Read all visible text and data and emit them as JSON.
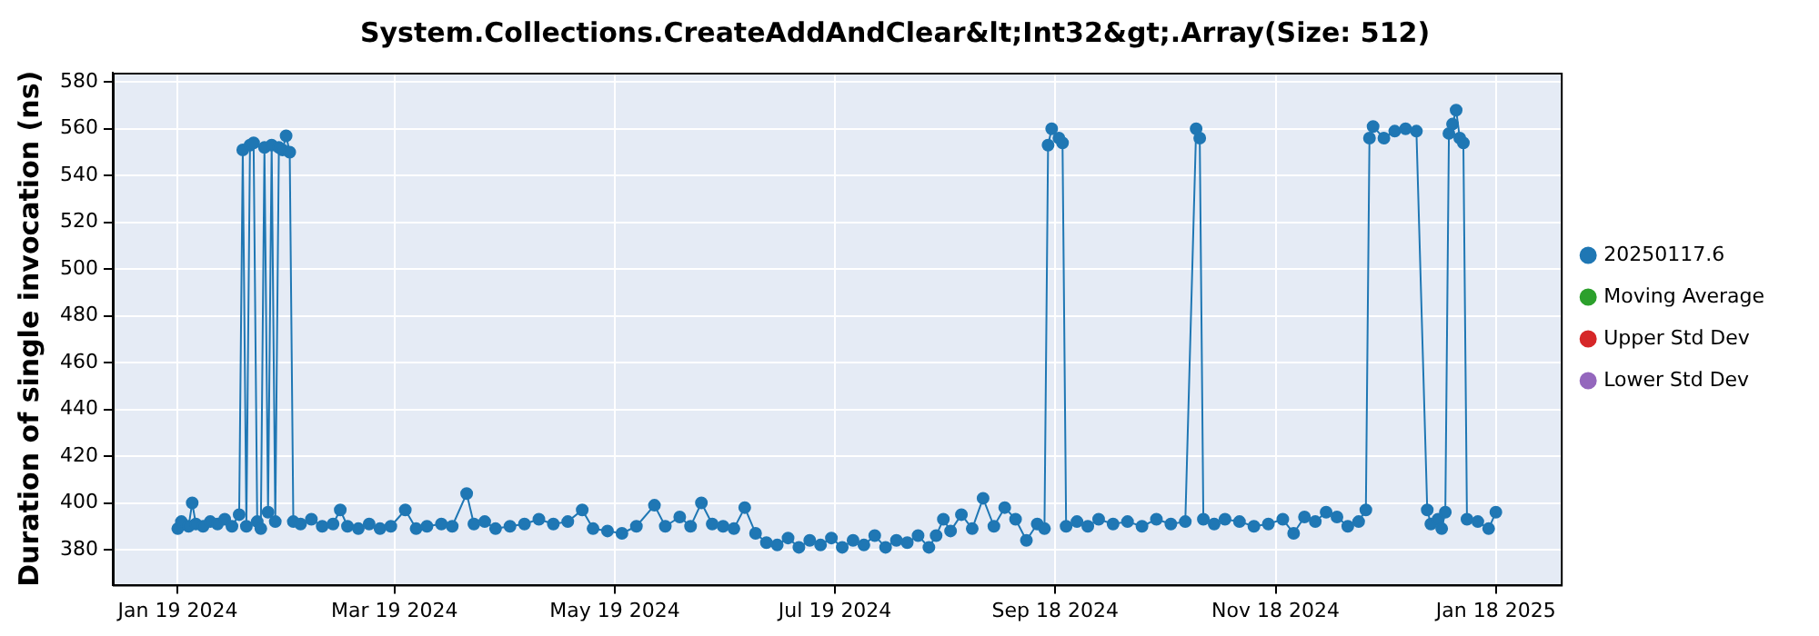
{
  "chart_data": {
    "type": "line",
    "title": "System.Collections.CreateAddAndClear&lt;Int32&gt;.Array(Size: 512)",
    "ylabel": "Duration of single invocation (ns)",
    "xlim": [
      "2024-01-01",
      "2025-02-05"
    ],
    "xticks": [
      {
        "value": "2024-01-19",
        "label": "Jan 19 2024"
      },
      {
        "value": "2024-03-19",
        "label": "Mar 19 2024"
      },
      {
        "value": "2024-05-19",
        "label": "May 19 2024"
      },
      {
        "value": "2024-07-19",
        "label": "Jul 19 2024"
      },
      {
        "value": "2024-09-18",
        "label": "Sep 18 2024"
      },
      {
        "value": "2024-11-18",
        "label": "Nov 18 2024"
      },
      {
        "value": "2025-01-18",
        "label": "Jan 18 2025"
      }
    ],
    "ylim": [
      365,
      584
    ],
    "yticks": [
      380,
      400,
      420,
      440,
      460,
      480,
      500,
      520,
      540,
      560,
      580
    ],
    "grid": true,
    "legend": "right",
    "marker": "circle",
    "line_style": "solid",
    "x": [
      "2024-01-19",
      "2024-01-20",
      "2024-01-22",
      "2024-01-23",
      "2024-01-24",
      "2024-01-26",
      "2024-01-28",
      "2024-01-30",
      "2024-02-01",
      "2024-02-03",
      "2024-02-05",
      "2024-02-06",
      "2024-02-07",
      "2024-02-08",
      "2024-02-09",
      "2024-02-10",
      "2024-02-11",
      "2024-02-12",
      "2024-02-13",
      "2024-02-14",
      "2024-02-15",
      "2024-02-16",
      "2024-02-17",
      "2024-02-18",
      "2024-02-19",
      "2024-02-20",
      "2024-02-22",
      "2024-02-25",
      "2024-02-28",
      "2024-03-02",
      "2024-03-04",
      "2024-03-06",
      "2024-03-09",
      "2024-03-12",
      "2024-03-15",
      "2024-03-18",
      "2024-03-22",
      "2024-03-25",
      "2024-03-28",
      "2024-04-01",
      "2024-04-04",
      "2024-04-08",
      "2024-04-10",
      "2024-04-13",
      "2024-04-16",
      "2024-04-20",
      "2024-04-24",
      "2024-04-28",
      "2024-05-02",
      "2024-05-06",
      "2024-05-10",
      "2024-05-13",
      "2024-05-17",
      "2024-05-21",
      "2024-05-25",
      "2024-05-30",
      "2024-06-02",
      "2024-06-06",
      "2024-06-09",
      "2024-06-12",
      "2024-06-15",
      "2024-06-18",
      "2024-06-21",
      "2024-06-24",
      "2024-06-27",
      "2024-06-30",
      "2024-07-03",
      "2024-07-06",
      "2024-07-09",
      "2024-07-12",
      "2024-07-15",
      "2024-07-18",
      "2024-07-21",
      "2024-07-24",
      "2024-07-27",
      "2024-07-30",
      "2024-08-02",
      "2024-08-05",
      "2024-08-08",
      "2024-08-11",
      "2024-08-14",
      "2024-08-16",
      "2024-08-18",
      "2024-08-20",
      "2024-08-23",
      "2024-08-26",
      "2024-08-29",
      "2024-09-01",
      "2024-09-04",
      "2024-09-07",
      "2024-09-10",
      "2024-09-13",
      "2024-09-15",
      "2024-09-16",
      "2024-09-17",
      "2024-09-19",
      "2024-09-20",
      "2024-09-21",
      "2024-09-24",
      "2024-09-27",
      "2024-09-30",
      "2024-10-04",
      "2024-10-08",
      "2024-10-12",
      "2024-10-16",
      "2024-10-20",
      "2024-10-24",
      "2024-10-27",
      "2024-10-28",
      "2024-10-29",
      "2024-11-01",
      "2024-11-04",
      "2024-11-08",
      "2024-11-12",
      "2024-11-16",
      "2024-11-20",
      "2024-11-23",
      "2024-11-26",
      "2024-11-29",
      "2024-12-02",
      "2024-12-05",
      "2024-12-08",
      "2024-12-11",
      "2024-12-13",
      "2024-12-14",
      "2024-12-15",
      "2024-12-18",
      "2024-12-21",
      "2024-12-24",
      "2024-12-27",
      "2024-12-30",
      "2024-12-31",
      "2025-01-02",
      "2025-01-03",
      "2025-01-04",
      "2025-01-05",
      "2025-01-06",
      "2025-01-07",
      "2025-01-08",
      "2025-01-09",
      "2025-01-10",
      "2025-01-13",
      "2025-01-16",
      "2025-01-18"
    ],
    "series": [
      {
        "name": "20250117.6",
        "color": "#1f77b4",
        "values": [
          389,
          392,
          390,
          400,
          391,
          390,
          392,
          391,
          393,
          390,
          395,
          551,
          390,
          553,
          554,
          392,
          389,
          552,
          396,
          553,
          392,
          552,
          551,
          557,
          550,
          392,
          391,
          393,
          390,
          391,
          397,
          390,
          389,
          391,
          389,
          390,
          397,
          389,
          390,
          391,
          390,
          404,
          391,
          392,
          389,
          390,
          391,
          393,
          391,
          392,
          397,
          389,
          388,
          387,
          390,
          399,
          390,
          394,
          390,
          400,
          391,
          390,
          389,
          398,
          387,
          383,
          382,
          385,
          381,
          384,
          382,
          385,
          381,
          384,
          382,
          386,
          381,
          384,
          383,
          386,
          381,
          386,
          393,
          388,
          395,
          389,
          402,
          390,
          398,
          393,
          384,
          391,
          389,
          553,
          560,
          556,
          554,
          390,
          392,
          390,
          393,
          391,
          392,
          390,
          393,
          391,
          392,
          560,
          556,
          393,
          391,
          393,
          392,
          390,
          391,
          393,
          387,
          394,
          392,
          396,
          394,
          390,
          392,
          397,
          556,
          561,
          556,
          559,
          560,
          559,
          397,
          391,
          393,
          389,
          396,
          558,
          562,
          568,
          556,
          554,
          393,
          392,
          389,
          396
        ]
      },
      {
        "name": "Moving Average",
        "color": "#2ca02c",
        "values": [
          null,
          null,
          null,
          null,
          null,
          null,
          null,
          null,
          null,
          null,
          null,
          null,
          null,
          null,
          null,
          null,
          null,
          null,
          null,
          null,
          null,
          null,
          null,
          null,
          null,
          null,
          null,
          null,
          null,
          null,
          null,
          null,
          null,
          null,
          null,
          null,
          null,
          null,
          null,
          null,
          null,
          null,
          null,
          null,
          null,
          null,
          null,
          null,
          null,
          null,
          null,
          null,
          null,
          null,
          null,
          null,
          null,
          null,
          null,
          null,
          null,
          null,
          null,
          null,
          null,
          null,
          null,
          null,
          null,
          null,
          null,
          null,
          null,
          null,
          null,
          null,
          null,
          null,
          null,
          null,
          null,
          null,
          null,
          null,
          null,
          null,
          null,
          null,
          null,
          null,
          null,
          null,
          null,
          null,
          null,
          null,
          null,
          null,
          null,
          null,
          null,
          null,
          null,
          null,
          null,
          null,
          null,
          null,
          null,
          null,
          null,
          null,
          null,
          null,
          null,
          null,
          null,
          null,
          null,
          null,
          null,
          null,
          null,
          null,
          null,
          null,
          null,
          null,
          null,
          null,
          null,
          null,
          null,
          null,
          null,
          null,
          null,
          null,
          null,
          null,
          null,
          null,
          null,
          null
        ]
      },
      {
        "name": "Upper Std Dev",
        "color": "#d62728",
        "values": [
          null,
          null,
          null,
          null,
          null,
          null,
          null,
          null,
          null,
          null,
          null,
          null,
          null,
          null,
          null,
          null,
          null,
          null,
          null,
          null,
          null,
          null,
          null,
          null,
          null,
          null,
          null,
          null,
          null,
          null,
          null,
          null,
          null,
          null,
          null,
          null,
          null,
          null,
          null,
          null,
          null,
          null,
          null,
          null,
          null,
          null,
          null,
          null,
          null,
          null,
          null,
          null,
          null,
          null,
          null,
          null,
          null,
          null,
          null,
          null,
          null,
          null,
          null,
          null,
          null,
          null,
          null,
          null,
          null,
          null,
          null,
          null,
          null,
          null,
          null,
          null,
          null,
          null,
          null,
          null,
          null,
          null,
          null,
          null,
          null,
          null,
          null,
          null,
          null,
          null,
          null,
          null,
          null,
          null,
          null,
          null,
          null,
          null,
          null,
          null,
          null,
          null,
          null,
          null,
          null,
          null,
          null,
          null,
          null,
          null,
          null,
          null,
          null,
          null,
          null,
          null,
          null,
          null,
          null,
          null,
          null,
          null,
          null,
          null,
          null,
          null,
          null,
          null,
          null,
          null,
          null,
          null,
          null,
          null,
          null,
          null,
          null,
          null,
          null,
          null,
          null,
          null,
          null,
          null
        ]
      },
      {
        "name": "Lower Std Dev",
        "color": "#9467bd",
        "values": [
          null,
          null,
          null,
          null,
          null,
          null,
          null,
          null,
          null,
          null,
          null,
          null,
          null,
          null,
          null,
          null,
          null,
          null,
          null,
          null,
          null,
          null,
          null,
          null,
          null,
          null,
          null,
          null,
          null,
          null,
          null,
          null,
          null,
          null,
          null,
          null,
          null,
          null,
          null,
          null,
          null,
          null,
          null,
          null,
          null,
          null,
          null,
          null,
          null,
          null,
          null,
          null,
          null,
          null,
          null,
          null,
          null,
          null,
          null,
          null,
          null,
          null,
          null,
          null,
          null,
          null,
          null,
          null,
          null,
          null,
          null,
          null,
          null,
          null,
          null,
          null,
          null,
          null,
          null,
          null,
          null,
          null,
          null,
          null,
          null,
          null,
          null,
          null,
          null,
          null,
          null,
          null,
          null,
          null,
          null,
          null,
          null,
          null,
          null,
          null,
          null,
          null,
          null,
          null,
          null,
          null,
          null,
          null,
          null,
          null,
          null,
          null,
          null,
          null,
          null,
          null,
          null,
          null,
          null,
          null,
          null,
          null,
          null,
          null,
          null,
          null,
          null,
          null,
          null,
          null,
          null,
          null,
          null,
          null,
          null,
          null,
          null,
          null,
          null,
          null,
          null,
          null,
          null,
          null
        ]
      }
    ]
  }
}
